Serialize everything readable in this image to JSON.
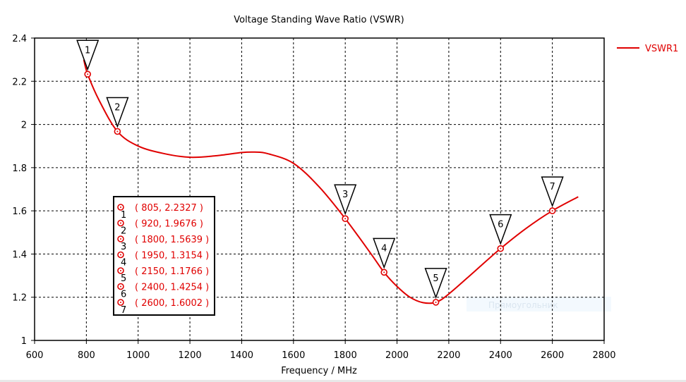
{
  "chart_data": {
    "type": "line",
    "title": "Voltage Standing Wave Ratio (VSWR)",
    "xlabel": "Frequency / MHz",
    "ylabel": "",
    "xlim": [
      600,
      2800
    ],
    "ylim": [
      1,
      2.4
    ],
    "xticks": [
      "600",
      "800",
      "1000",
      "1200",
      "1400",
      "1600",
      "1800",
      "2000",
      "2200",
      "2400",
      "2600",
      "2800"
    ],
    "yticks": [
      "1",
      "1.2",
      "1.4",
      "1.6",
      "1.8",
      "2",
      "2.2",
      "2.4"
    ],
    "grid": true,
    "legend": {
      "placement": "top-right",
      "entries": [
        "VSWR1"
      ]
    },
    "series": [
      {
        "name": "VSWR1",
        "color": "#e00000",
        "x": [
          790,
          805,
          850,
          920,
          1000,
          1100,
          1200,
          1300,
          1400,
          1450,
          1500,
          1600,
          1700,
          1800,
          1900,
          1950,
          2000,
          2050,
          2100,
          2150,
          2200,
          2300,
          2400,
          2500,
          2600,
          2700
        ],
        "y": [
          2.3,
          2.2327,
          2.11,
          1.9676,
          1.9,
          1.865,
          1.848,
          1.855,
          1.87,
          1.872,
          1.865,
          1.82,
          1.71,
          1.5639,
          1.4,
          1.3154,
          1.25,
          1.2,
          1.175,
          1.1766,
          1.215,
          1.32,
          1.4254,
          1.52,
          1.6002,
          1.665
        ]
      }
    ],
    "markers": [
      {
        "id": "1",
        "x": 805,
        "y": 2.2327,
        "label": "( 805, 2.2327 )"
      },
      {
        "id": "2",
        "x": 920,
        "y": 1.9676,
        "label": "( 920, 1.9676 )"
      },
      {
        "id": "3",
        "x": 1800,
        "y": 1.5639,
        "label": "( 1800, 1.5639 )"
      },
      {
        "id": "4",
        "x": 1950,
        "y": 1.3154,
        "label": "( 1950, 1.3154 )"
      },
      {
        "id": "5",
        "x": 2150,
        "y": 1.1766,
        "label": "( 2150, 1.1766 )"
      },
      {
        "id": "6",
        "x": 2400,
        "y": 1.4254,
        "label": "( 2400, 1.4254 )"
      },
      {
        "id": "7",
        "x": 2600,
        "y": 1.6002,
        "label": "( 2600, 1.6002 )"
      }
    ]
  },
  "overlay_hint": "Прямоугольник"
}
